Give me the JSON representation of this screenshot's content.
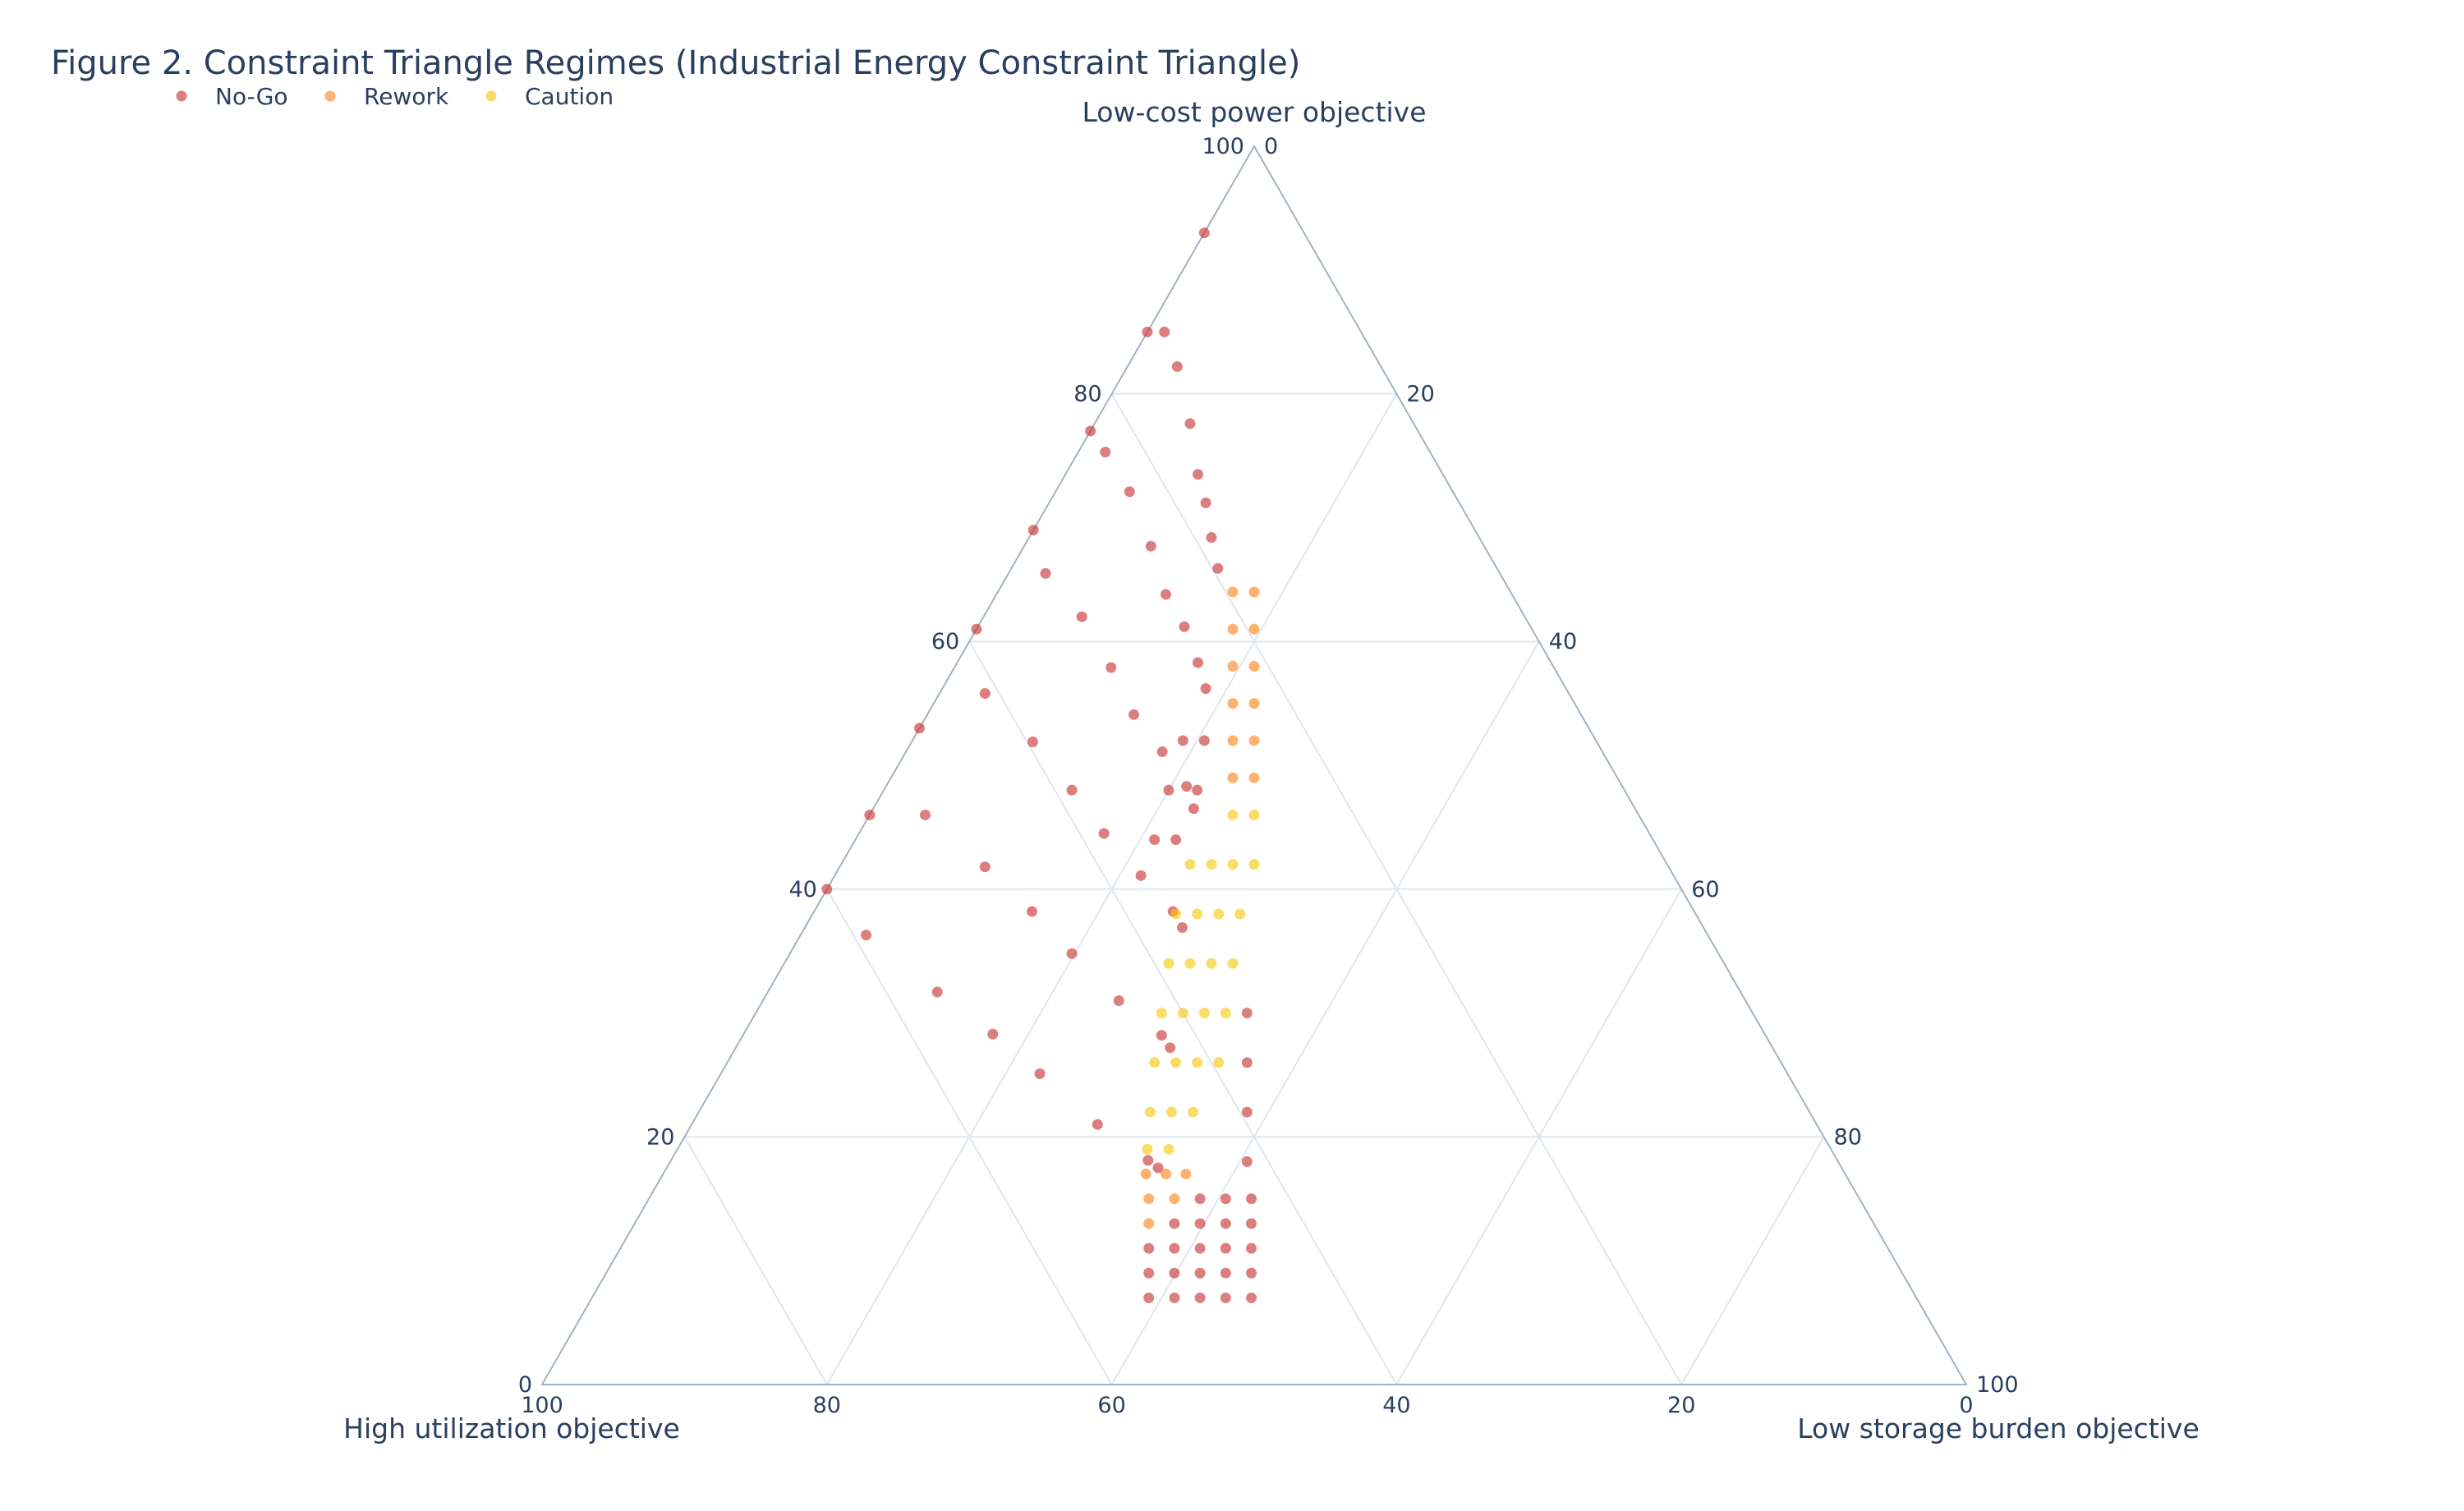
{
  "chart_data": {
    "type": "scatter",
    "subtype": "ternary",
    "title": "Figure 2. Constraint Triangle Regimes (Industrial Energy Constraint Triangle)",
    "axes": {
      "a": {
        "label": "Low-cost power objective",
        "ticks": [
          "0",
          "20",
          "40",
          "60",
          "80",
          "100"
        ]
      },
      "b": {
        "label": "High utilization objective",
        "ticks": [
          "0",
          "20",
          "40",
          "60",
          "80",
          "100"
        ]
      },
      "c": {
        "label": "Low storage burden objective",
        "ticks": [
          "0",
          "20",
          "40",
          "60",
          "80",
          "100"
        ]
      },
      "range": [
        0,
        100
      ]
    },
    "grid": true,
    "legend": {
      "placement": "top-left",
      "orientation": "horizontal"
    },
    "point_order": [
      "a",
      "b",
      "c"
    ],
    "series": [
      {
        "name": "No-Go",
        "color": "#c62828",
        "points": [
          [
            93,
            7,
            0
          ],
          [
            85,
            15,
            0
          ],
          [
            77,
            23,
            0
          ],
          [
            69,
            31,
            0
          ],
          [
            61,
            39,
            0
          ],
          [
            53,
            47,
            0
          ],
          [
            46,
            54,
            0
          ],
          [
            40,
            60,
            0
          ],
          [
            85,
            13.8,
            1.2
          ],
          [
            75.3,
            22.8,
            1.9
          ],
          [
            65.5,
            31.9,
            2.6
          ],
          [
            55.8,
            41,
            3.2
          ],
          [
            46,
            50.1,
            3.9
          ],
          [
            36.3,
            59.1,
            4.6
          ],
          [
            82.2,
            14.3,
            3.5
          ],
          [
            72.1,
            22.7,
            5.2
          ],
          [
            62,
            31.1,
            6.9
          ],
          [
            51.9,
            39.6,
            8.5
          ],
          [
            41.8,
            48,
            10.2
          ],
          [
            31.7,
            56.4,
            11.9
          ],
          [
            77.6,
            15.7,
            6.7
          ],
          [
            67.7,
            23.4,
            8.9
          ],
          [
            57.9,
            31.1,
            11
          ],
          [
            48,
            38.8,
            13.2
          ],
          [
            38.2,
            46.5,
            15.3
          ],
          [
            28.3,
            54.2,
            17.5
          ],
          [
            73.5,
            17.2,
            9.3
          ],
          [
            63.8,
            24.3,
            11.9
          ],
          [
            54.1,
            31.4,
            14.5
          ],
          [
            44.5,
            38.3,
            17.2
          ],
          [
            34.8,
            45.4,
            19.8
          ],
          [
            25.1,
            52.5,
            22.4
          ],
          [
            71.2,
            17.8,
            11
          ],
          [
            61.2,
            24.3,
            14.5
          ],
          [
            51.1,
            30.9,
            18
          ],
          [
            41.1,
            37.4,
            21.5
          ],
          [
            31,
            44,
            25
          ],
          [
            21,
            50.5,
            28.5
          ],
          [
            68.4,
            18.8,
            12.8
          ],
          [
            58.3,
            24.8,
            16.9
          ],
          [
            48.3,
            30.6,
            21.1
          ],
          [
            38.2,
            36.6,
            25.2
          ],
          [
            28.2,
            42.4,
            29.4
          ],
          [
            18.1,
            48.4,
            33.5
          ],
          [
            65.9,
            19.6,
            14.5
          ],
          [
            56.2,
            25.3,
            18.5
          ],
          [
            46.5,
            31,
            22.5
          ],
          [
            36.9,
            36.6,
            26.5
          ],
          [
            27.2,
            42.3,
            30.5
          ],
          [
            17.5,
            48,
            34.5
          ],
          [
            52,
            29,
            19
          ],
          [
            52,
            27.5,
            20.5
          ],
          [
            48,
            32,
            20
          ],
          [
            48,
            30,
            22
          ],
          [
            44,
            35,
            21
          ],
          [
            44,
            33.5,
            22.5
          ],
          [
            30,
            35.5,
            34.5
          ],
          [
            26,
            37.5,
            36.5
          ],
          [
            22,
            39.5,
            38.5
          ],
          [
            18,
            41.5,
            40.5
          ],
          [
            15,
            46.3,
            38.7
          ],
          [
            15,
            44.5,
            40.5
          ],
          [
            15,
            42.7,
            42.3
          ],
          [
            13,
            49.1,
            37.9
          ],
          [
            13,
            47.3,
            39.7
          ],
          [
            13,
            45.5,
            41.5
          ],
          [
            13,
            43.7,
            43.3
          ],
          [
            11,
            51.9,
            37.1
          ],
          [
            11,
            50.1,
            38.9
          ],
          [
            11,
            48.3,
            40.7
          ],
          [
            11,
            46.5,
            42.5
          ],
          [
            11,
            44.7,
            44.3
          ],
          [
            9,
            52.9,
            38.1
          ],
          [
            9,
            51.1,
            39.9
          ],
          [
            9,
            49.3,
            41.7
          ],
          [
            9,
            47.5,
            43.5
          ],
          [
            9,
            45.7,
            45.3
          ],
          [
            7,
            53.9,
            39.1
          ],
          [
            7,
            52.1,
            40.9
          ],
          [
            7,
            50.3,
            42.7
          ],
          [
            7,
            48.5,
            44.5
          ],
          [
            7,
            46.7,
            46.3
          ]
        ]
      },
      {
        "name": "Rework",
        "color": "#ff7f0e",
        "points": [
          [
            64,
            19.5,
            16.5
          ],
          [
            64,
            18,
            18
          ],
          [
            61,
            21,
            18
          ],
          [
            61,
            19.5,
            19.5
          ],
          [
            58,
            22.5,
            19.5
          ],
          [
            58,
            21,
            21
          ],
          [
            55,
            24,
            21
          ],
          [
            55,
            22.5,
            22.5
          ],
          [
            52,
            25.5,
            22.5
          ],
          [
            52,
            24,
            24
          ],
          [
            49,
            27,
            24
          ],
          [
            49,
            25.5,
            25.5
          ],
          [
            17,
            49.1,
            33.9
          ],
          [
            17,
            47.7,
            35.3
          ],
          [
            17,
            46.3,
            36.7
          ],
          [
            15,
            49.9,
            35.1
          ],
          [
            15,
            48.1,
            36.9
          ],
          [
            13,
            50.9,
            36.1
          ]
        ]
      },
      {
        "name": "Caution",
        "color": "#f6c700",
        "points": [
          [
            46,
            28.5,
            25.5
          ],
          [
            46,
            27,
            27
          ],
          [
            42,
            33.5,
            24.5
          ],
          [
            42,
            32,
            26
          ],
          [
            42,
            30.5,
            27.5
          ],
          [
            42,
            29,
            29
          ],
          [
            38,
            36.5,
            25.5
          ],
          [
            38,
            35,
            27
          ],
          [
            38,
            33.5,
            28.5
          ],
          [
            38,
            32,
            30
          ],
          [
            34,
            39,
            27
          ],
          [
            34,
            37.5,
            28.5
          ],
          [
            34,
            36,
            30
          ],
          [
            34,
            34.5,
            31.5
          ],
          [
            30,
            41.5,
            28.5
          ],
          [
            30,
            40,
            30
          ],
          [
            30,
            38.5,
            31.5
          ],
          [
            30,
            37,
            33
          ],
          [
            26,
            44,
            30
          ],
          [
            26,
            42.5,
            31.5
          ],
          [
            26,
            41,
            33
          ],
          [
            26,
            39.5,
            34.5
          ],
          [
            22,
            46.3,
            31.7
          ],
          [
            22,
            44.8,
            33.2
          ],
          [
            22,
            43.3,
            34.7
          ],
          [
            19,
            48,
            33
          ],
          [
            19,
            46.5,
            34.5
          ]
        ]
      }
    ]
  }
}
